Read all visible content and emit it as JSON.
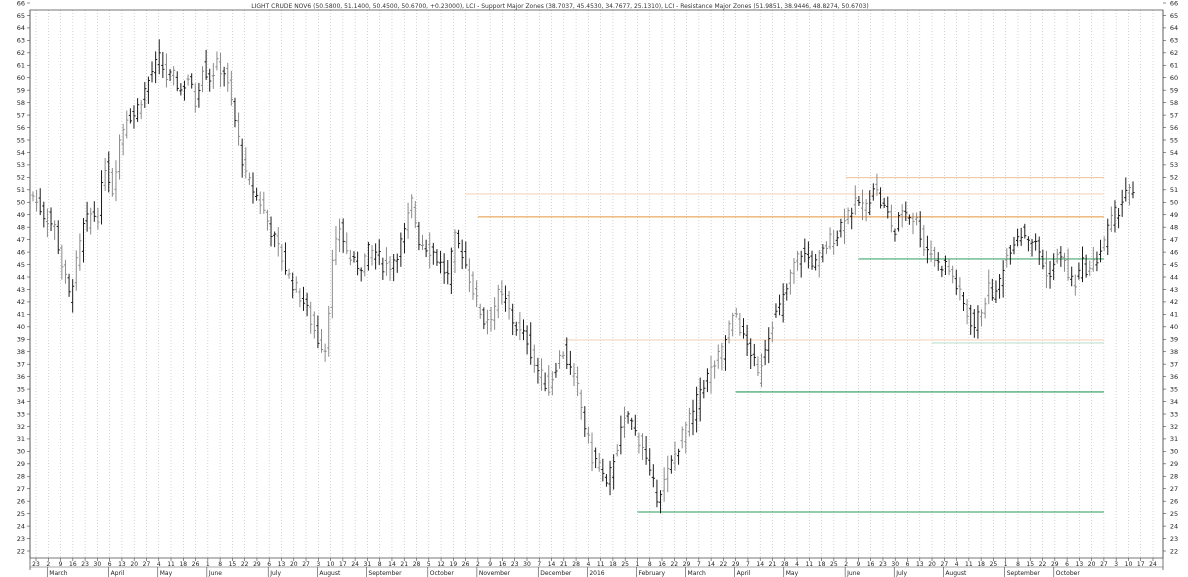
{
  "chart_data": {
    "type": "ohlc",
    "title": "LIGHT CRUDE NOV6 (50.5800, 51.1400, 50.4500, 50.6700, +0.23000), LCI - Support Major Zones (38.7037, 45.4530, 34.7677, 25.1310), LCI - Resistance Major Zones (51.9851, 38.9446, 48.8274, 50.6703)",
    "ylim": [
      22,
      66
    ],
    "y_ticks": [
      22,
      23,
      24,
      25,
      26,
      27,
      28,
      29,
      30,
      31,
      32,
      33,
      34,
      35,
      36,
      37,
      38,
      39,
      40,
      41,
      42,
      43,
      44,
      45,
      46,
      47,
      48,
      49,
      50,
      51,
      52,
      53,
      54,
      55,
      56,
      57,
      58,
      59,
      60,
      61,
      62,
      63,
      64,
      65,
      66
    ],
    "x_ticks": [
      "23",
      "2",
      "9",
      "16",
      "23",
      "30",
      "6",
      "13",
      "20",
      "27",
      "4",
      "11",
      "18",
      "26",
      "1",
      "8",
      "15",
      "22",
      "29",
      "6",
      "13",
      "20",
      "27",
      "3",
      "10",
      "17",
      "24",
      "31",
      "8",
      "14",
      "21",
      "28",
      "5",
      "12",
      "19",
      "26",
      "2",
      "9",
      "16",
      "23",
      "30",
      "7",
      "14",
      "21",
      "28",
      "4",
      "11",
      "18",
      "25",
      "1",
      "8",
      "16",
      "22",
      "29",
      "7",
      "14",
      "22",
      "29",
      "7",
      "14",
      "21",
      "28",
      "4",
      "11",
      "18",
      "25",
      "2",
      "9",
      "16",
      "23",
      "30",
      "6",
      "13",
      "20",
      "27",
      "4",
      "11",
      "18",
      "25",
      "1",
      "8",
      "15",
      "22",
      "29",
      "6",
      "13",
      "20",
      "27",
      "3",
      "10",
      "17",
      "24"
    ],
    "months": [
      {
        "label": "March",
        "tick": 1
      },
      {
        "label": "April",
        "tick": 6
      },
      {
        "label": "May",
        "tick": 10
      },
      {
        "label": "June",
        "tick": 14
      },
      {
        "label": "July",
        "tick": 19
      },
      {
        "label": "August",
        "tick": 23
      },
      {
        "label": "September",
        "tick": 27
      },
      {
        "label": "October",
        "tick": 32
      },
      {
        "label": "November",
        "tick": 36
      },
      {
        "label": "December",
        "tick": 41
      },
      {
        "label": "2016",
        "tick": 45
      },
      {
        "label": "February",
        "tick": 49
      },
      {
        "label": "March",
        "tick": 53
      },
      {
        "label": "April",
        "tick": 57
      },
      {
        "label": "May",
        "tick": 61
      },
      {
        "label": "June",
        "tick": 66
      },
      {
        "label": "July",
        "tick": 70
      },
      {
        "label": "August",
        "tick": 74
      },
      {
        "label": "September",
        "tick": 79
      },
      {
        "label": "October",
        "tick": 83
      }
    ],
    "anchors": [
      [
        0,
        50.5
      ],
      [
        3,
        49
      ],
      [
        6,
        48
      ],
      [
        8,
        45
      ],
      [
        10,
        42.5
      ],
      [
        12,
        45
      ],
      [
        14,
        48
      ],
      [
        16,
        49
      ],
      [
        18,
        49
      ],
      [
        20,
        53
      ],
      [
        22,
        51
      ],
      [
        24,
        55
      ],
      [
        26,
        57
      ],
      [
        28,
        57
      ],
      [
        31,
        59
      ],
      [
        33,
        60.5
      ],
      [
        35,
        61.5
      ],
      [
        37,
        60
      ],
      [
        39,
        60
      ],
      [
        41,
        59
      ],
      [
        43,
        60
      ],
      [
        45,
        58
      ],
      [
        47,
        61
      ],
      [
        49,
        60
      ],
      [
        51,
        61
      ],
      [
        53,
        60.5
      ],
      [
        55,
        58
      ],
      [
        57,
        55
      ],
      [
        59,
        52
      ],
      [
        61,
        51
      ],
      [
        63,
        50
      ],
      [
        65,
        48.5
      ],
      [
        67,
        47
      ],
      [
        69,
        45.5
      ],
      [
        71,
        44
      ],
      [
        73,
        43
      ],
      [
        75,
        42
      ],
      [
        77,
        40.5
      ],
      [
        79,
        39
      ],
      [
        81,
        38.3
      ],
      [
        83,
        45
      ],
      [
        85,
        48
      ],
      [
        87,
        46
      ],
      [
        89,
        45
      ],
      [
        91,
        45
      ],
      [
        93,
        46
      ],
      [
        95,
        46
      ],
      [
        97,
        45
      ],
      [
        99,
        45
      ],
      [
        101,
        46
      ],
      [
        103,
        47.5
      ],
      [
        105,
        50
      ],
      [
        107,
        47
      ],
      [
        109,
        46.5
      ],
      [
        111,
        46
      ],
      [
        113,
        45
      ],
      [
        115,
        44
      ],
      [
        117,
        47
      ],
      [
        119,
        46
      ],
      [
        121,
        44
      ],
      [
        123,
        42
      ],
      [
        125,
        40.5
      ],
      [
        127,
        41
      ],
      [
        129,
        42.5
      ],
      [
        131,
        42
      ],
      [
        133,
        40.5
      ],
      [
        135,
        39.5
      ],
      [
        137,
        39
      ],
      [
        139,
        37
      ],
      [
        141,
        36
      ],
      [
        143,
        35
      ],
      [
        145,
        37
      ],
      [
        147,
        38
      ],
      [
        149,
        36.5
      ],
      [
        151,
        35
      ],
      [
        153,
        32
      ],
      [
        155,
        29.5
      ],
      [
        157,
        29
      ],
      [
        159,
        27
      ],
      [
        161,
        29.5
      ],
      [
        163,
        31.5
      ],
      [
        165,
        33
      ],
      [
        167,
        31.5
      ],
      [
        169,
        30.5
      ],
      [
        171,
        28
      ],
      [
        173,
        26.5
      ],
      [
        175,
        27.5
      ],
      [
        177,
        29
      ],
      [
        179,
        30.5
      ],
      [
        181,
        32
      ],
      [
        183,
        33
      ],
      [
        185,
        35
      ],
      [
        187,
        36
      ],
      [
        189,
        37
      ],
      [
        191,
        38
      ],
      [
        193,
        40
      ],
      [
        195,
        41
      ],
      [
        197,
        39
      ],
      [
        199,
        38
      ],
      [
        201,
        36
      ],
      [
        203,
        38.5
      ],
      [
        205,
        40.5
      ],
      [
        207,
        41.5
      ],
      [
        209,
        43
      ],
      [
        211,
        45
      ],
      [
        213,
        46
      ],
      [
        215,
        45.5
      ],
      [
        217,
        45
      ],
      [
        219,
        46
      ],
      [
        221,
        47
      ],
      [
        223,
        47.5
      ],
      [
        225,
        49
      ],
      [
        227,
        49.5
      ],
      [
        229,
        50
      ],
      [
        231,
        49.5
      ],
      [
        233,
        51.5
      ],
      [
        235,
        50
      ],
      [
        237,
        49
      ],
      [
        239,
        47.5
      ],
      [
        241,
        49.5
      ],
      [
        243,
        49
      ],
      [
        245,
        48.5
      ],
      [
        247,
        46.5
      ],
      [
        249,
        46
      ],
      [
        251,
        45
      ],
      [
        253,
        45
      ],
      [
        255,
        44
      ],
      [
        257,
        42.5
      ],
      [
        259,
        41
      ],
      [
        261,
        40
      ],
      [
        263,
        41.5
      ],
      [
        265,
        43
      ],
      [
        267,
        42.5
      ],
      [
        269,
        45
      ],
      [
        271,
        46.5
      ],
      [
        273,
        47.5
      ],
      [
        275,
        47.5
      ],
      [
        277,
        47
      ],
      [
        279,
        46
      ],
      [
        281,
        44
      ],
      [
        283,
        45
      ],
      [
        285,
        46
      ],
      [
        287,
        44
      ],
      [
        289,
        43.5
      ],
      [
        291,
        45
      ],
      [
        293,
        44.5
      ],
      [
        295,
        45.5
      ],
      [
        297,
        47
      ],
      [
        299,
        48.5
      ],
      [
        301,
        49.5
      ],
      [
        303,
        51
      ],
      [
        305,
        50.5
      ]
    ],
    "bar_count": 306,
    "resistance_levels": [
      {
        "value": 51.9851,
        "color": "#f2c9a6",
        "from_tick": 66,
        "to_tick": 87
      },
      {
        "value": 50.6703,
        "color": "#f5d6bd",
        "from_tick": 35,
        "to_tick": 87
      },
      {
        "value": 48.8274,
        "color": "#e8953e",
        "from_tick": 36,
        "to_tick": 87
      },
      {
        "value": 38.9446,
        "color": "#f5d6bd",
        "from_tick": 43,
        "to_tick": 87
      }
    ],
    "support_levels": [
      {
        "value": 45.453,
        "color": "#45a872",
        "from_tick": 67,
        "to_tick": 87
      },
      {
        "value": 38.7037,
        "color": "#bfe0c9",
        "from_tick": 73,
        "to_tick": 87
      },
      {
        "value": 34.7677,
        "color": "#2a9a5a",
        "from_tick": 57,
        "to_tick": 87
      },
      {
        "value": 25.131,
        "color": "#2a9a5a",
        "from_tick": 49,
        "to_tick": 87
      }
    ],
    "colors": {
      "bar_dark": "#1a1a1a",
      "bar_light": "#8a8a8a",
      "grid": "#b8b8b8"
    },
    "grid": true
  }
}
